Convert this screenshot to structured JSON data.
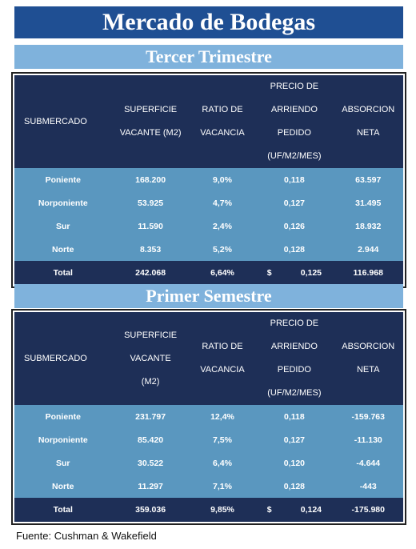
{
  "title": "Mercado de Bodegas",
  "sections": [
    {
      "title": "Tercer Trimestre",
      "headers": {
        "submercado": "SUBMERCADO",
        "superficie": [
          "SUPERFICIE",
          "VACANTE (M2)"
        ],
        "ratio": [
          "RATIO DE",
          "VACANCIA"
        ],
        "precio": [
          "PRECIO DE",
          "ARRIENDO",
          "PEDIDO",
          "(UF/M2/MES)"
        ],
        "absorcion": [
          "ABSORCION",
          "NETA"
        ]
      },
      "rows": [
        {
          "submercado": "Poniente",
          "superficie": "168.200",
          "ratio": "9,0%",
          "precio": "0,118",
          "absorcion": "63.597"
        },
        {
          "submercado": "Norponiente",
          "superficie": "53.925",
          "ratio": "4,7%",
          "precio": "0,127",
          "absorcion": "31.495"
        },
        {
          "submercado": "Sur",
          "superficie": "11.590",
          "ratio": "2,4%",
          "precio": "0,126",
          "absorcion": "18.932"
        },
        {
          "submercado": "Norte",
          "superficie": "8.353",
          "ratio": "5,2%",
          "precio": "0,128",
          "absorcion": "2.944"
        }
      ],
      "total": {
        "label": "Total",
        "superficie": "242.068",
        "ratio": "6,64%",
        "currency": "$",
        "precio": "0,125",
        "absorcion": "116.968"
      }
    },
    {
      "title": "Primer Semestre",
      "headers": {
        "submercado": "SUBMERCADO",
        "superficie": [
          "SUPERFICIE",
          "VACANTE",
          "(M2)"
        ],
        "ratio": [
          "RATIO DE",
          "VACANCIA"
        ],
        "precio": [
          "PRECIO DE",
          "ARRIENDO",
          "PEDIDO",
          "(UF/M2/MES)"
        ],
        "absorcion": [
          "ABSORCION",
          "NETA"
        ]
      },
      "rows": [
        {
          "submercado": "Poniente",
          "superficie": "231.797",
          "ratio": "12,4%",
          "precio": "0,118",
          "absorcion": "-159.763"
        },
        {
          "submercado": "Norponiente",
          "superficie": "85.420",
          "ratio": "7,5%",
          "precio": "0,127",
          "absorcion": "-11.130"
        },
        {
          "submercado": "Sur",
          "superficie": "30.522",
          "ratio": "6,4%",
          "precio": "0,120",
          "absorcion": "-4.644"
        },
        {
          "submercado": "Norte",
          "superficie": "11.297",
          "ratio": "7,1%",
          "precio": "0,128",
          "absorcion": "-443"
        }
      ],
      "total": {
        "label": "Total",
        "superficie": "359.036",
        "ratio": "9,85%",
        "currency": "$",
        "precio": "0,124",
        "absorcion": "-175.980"
      }
    }
  ],
  "source": "Fuente: Cushman & Wakefield"
}
